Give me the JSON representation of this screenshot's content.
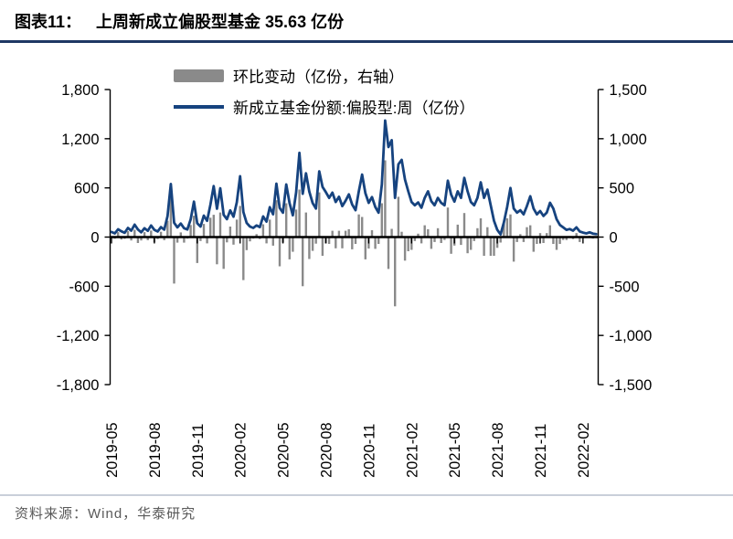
{
  "header": {
    "tag": "图表11：",
    "title": "上周新成立偏股型基金 35.63 亿份"
  },
  "legend": {
    "items": [
      {
        "label": "环比变动（亿份，右轴）",
        "type": "bar",
        "color": "#8a8a8a"
      },
      {
        "label": "新成立基金份额:偏股型:周（亿份）",
        "type": "line",
        "color": "#16437F"
      }
    ]
  },
  "footer": {
    "source": "资料来源：Wind，华泰研究"
  },
  "colors": {
    "line_navy": "#16437F",
    "bar_gray": "#8a8a8a",
    "title_rule_navy": "#1F3864",
    "axis_black": "#000000",
    "footer_gray": "#595959"
  },
  "chart_data": {
    "type": "bar",
    "subtype": "weekly bar + line combo, dual axis",
    "title": "上周新成立偏股型基金 35.63 亿份",
    "xlabel": "",
    "ylabel_left": "新成立基金份额:偏股型:周（亿份）",
    "ylabel_right": "环比变动（亿份，右轴）",
    "latest_value": 35.63,
    "grid": false,
    "legend_position": "top-left",
    "x_tick_labels": [
      "2019-05",
      "2019-08",
      "2019-11",
      "2020-02",
      "2020-05",
      "2020-08",
      "2020-11",
      "2021-02",
      "2021-05",
      "2021-08",
      "2021-11",
      "2022-02"
    ],
    "x_tick_week_indices": [
      0,
      13,
      26,
      39,
      52,
      65,
      78,
      91,
      104,
      117,
      130,
      143
    ],
    "left_axis": {
      "min": -1800,
      "max": 1800,
      "tick_values": [
        1800,
        1200,
        600,
        0,
        -600,
        -1200,
        -1800
      ],
      "tick_labels": [
        "1,800",
        "1,200",
        "600",
        "0",
        "-600",
        "-1,200",
        "-1,800"
      ],
      "applies_to": "line"
    },
    "right_axis": {
      "min": -1500,
      "max": 1500,
      "tick_values": [
        1500,
        1000,
        500,
        0,
        -500,
        -1000,
        -1500
      ],
      "tick_labels": [
        "1,500",
        "1,000",
        "500",
        "0",
        "-500",
        "-1,000",
        "-1,500"
      ],
      "applies_to": "bar"
    },
    "series": [
      {
        "name": "环比变动（亿份，右轴）",
        "type": "bar",
        "axis": "right",
        "color": "#8a8a8a",
        "derivation": "week-over-week change of line series",
        "values": [
          0,
          -17,
          50,
          -25,
          -18,
          60,
          -34,
          74,
          -60,
          -34,
          50,
          -32,
          66,
          -54,
          -20,
          54,
          -32,
          165,
          393,
          -473,
          -57,
          47,
          -57,
          -16,
          123,
          217,
          -264,
          -40,
          134,
          -64,
          197,
          227,
          -277,
          250,
          -323,
          -54,
          107,
          -77,
          177,
          317,
          -437,
          -133,
          -44,
          -16,
          30,
          -20,
          130,
          -64,
          177,
          -87,
          374,
          -297,
          -57,
          344,
          -227,
          -150,
          280,
          483,
          -500,
          250,
          -223,
          -140,
          -67,
          454,
          -190,
          -64,
          -70,
          64,
          -114,
          64,
          -114,
          64,
          80,
          -124,
          -70,
          230,
          204,
          -227,
          -117,
          70,
          -120,
          -70,
          344,
          780,
          -324,
          84,
          -704,
          410,
          54,
          -240,
          -144,
          -130,
          -40,
          34,
          -64,
          120,
          80,
          -120,
          -50,
          90,
          -60,
          -30,
          300,
          -170,
          -86,
          126,
          -80,
          244,
          -164,
          -130,
          -40,
          90,
          190,
          -190,
          100,
          -190,
          -190,
          -110,
          -56,
          146,
          190,
          230,
          -250,
          -50,
          30,
          -50,
          100,
          120,
          -150,
          -70,
          40,
          -60,
          40,
          120,
          -70,
          -130,
          -70,
          -30,
          -30,
          10,
          -20,
          40,
          -50,
          -13,
          -10,
          13,
          -16,
          -6.37
        ]
      },
      {
        "name": "新成立基金份额:偏股型:周（亿份）",
        "type": "line",
        "axis": "left",
        "color": "#16437F",
        "values": [
          62,
          45,
          95,
          70,
          52,
          112,
          78,
          152,
          92,
          58,
          108,
          76,
          142,
          88,
          68,
          122,
          90,
          255,
          648,
          175,
          118,
          165,
          108,
          92,
          215,
          432,
          168,
          128,
          262,
          198,
          395,
          622,
          345,
          595,
          272,
          218,
          325,
          248,
          425,
          742,
          305,
          172,
          128,
          112,
          142,
          122,
          252,
          188,
          365,
          278,
          652,
          355,
          298,
          642,
          415,
          265,
          545,
          1028,
          528,
          778,
          555,
          415,
          348,
          802,
          612,
          548,
          478,
          542,
          428,
          492,
          378,
          442,
          522,
          398,
          328,
          558,
          762,
          535,
          418,
          488,
          368,
          298,
          642,
          1422,
          1098,
          1182,
          478,
          888,
          942,
          702,
          558,
          428,
          388,
          422,
          358,
          478,
          558,
          438,
          388,
          478,
          418,
          388,
          688,
          518,
          432,
          558,
          478,
          722,
          558,
          428,
          388,
          478,
          668,
          478,
          578,
          388,
          198,
          88,
          32,
          178,
          368,
          598,
          348,
          298,
          328,
          278,
          378,
          498,
          348,
          278,
          318,
          258,
          298,
          418,
          348,
          218,
          148,
          118,
          88,
          98,
          78,
          118,
          68,
          55,
          45,
          58,
          42,
          35.63
        ]
      }
    ]
  }
}
